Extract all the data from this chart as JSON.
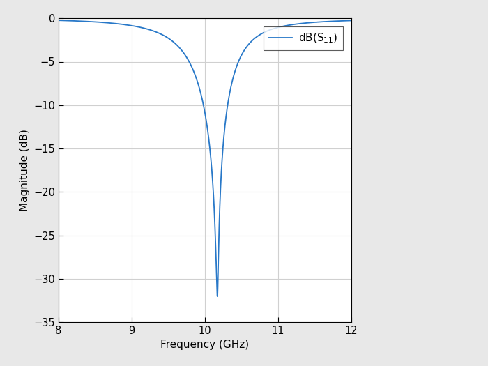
{
  "xlabel": "Frequency (GHz)",
  "ylabel": "Magnitude (dB)",
  "xlim": [
    8,
    12
  ],
  "ylim": [
    -35,
    0
  ],
  "xticks": [
    8,
    9,
    10,
    11,
    12
  ],
  "yticks": [
    0,
    -5,
    -10,
    -15,
    -20,
    -25,
    -30,
    -35
  ],
  "line_color": "#2878c8",
  "line_width": 1.3,
  "background_color": "#e8e8e8",
  "axes_background": "#ffffff",
  "grid_color": "#d0d0d0",
  "resonant_freq": 10.17,
  "resonant_depth": -32.0,
  "freq_start": 8.0,
  "freq_end": 12.0
}
